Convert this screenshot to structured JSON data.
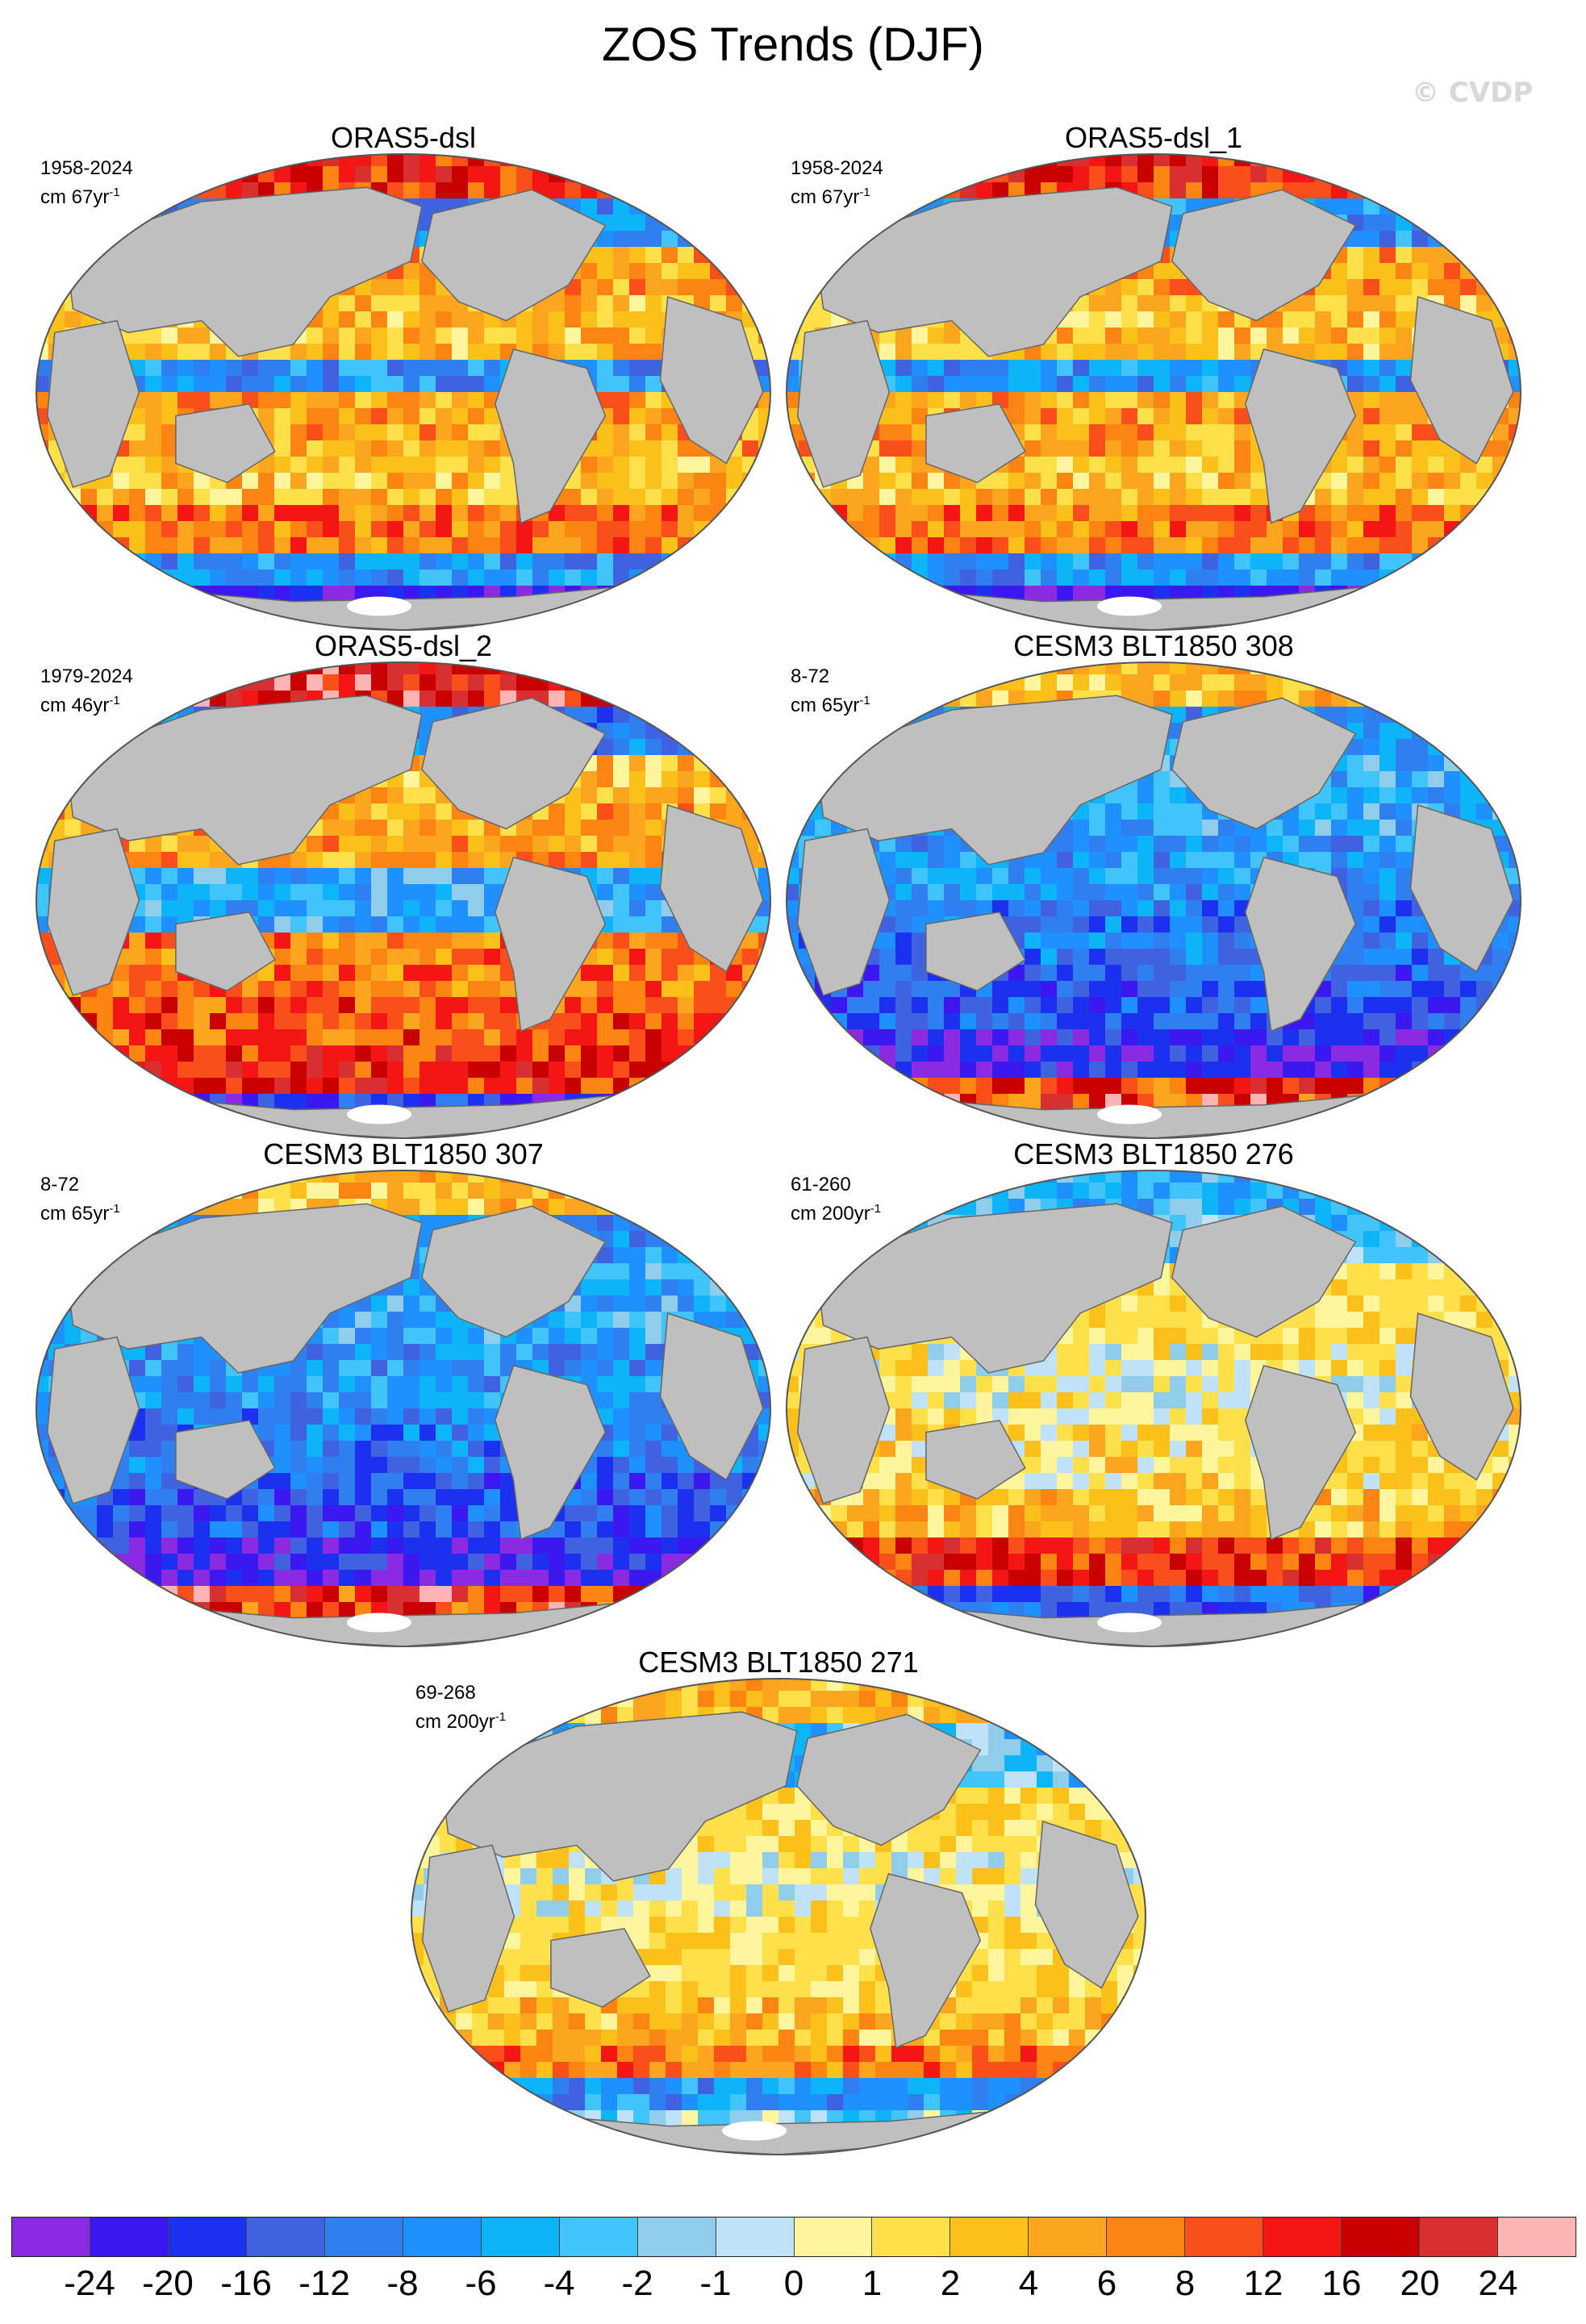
{
  "figure": {
    "title": "ZOS Trends (DJF)",
    "watermark": "© CVDP"
  },
  "panels": [
    {
      "title": "ORAS5-dsl",
      "period": "1958-2024",
      "units": "cm 67yr",
      "unit_exponent": "-1",
      "pattern": "obs"
    },
    {
      "title": "ORAS5-dsl_1",
      "period": "1958-2024",
      "units": "cm 67yr",
      "unit_exponent": "-1",
      "pattern": "obs"
    },
    {
      "title": "ORAS5-dsl_2",
      "period": "1979-2024",
      "units": "cm 46yr",
      "unit_exponent": "-1",
      "pattern": "obs2"
    },
    {
      "title": "CESM3 BLT1850 308",
      "period": "8-72",
      "units": "cm 65yr",
      "unit_exponent": "-1",
      "pattern": "cold"
    },
    {
      "title": "CESM3 BLT1850 307",
      "period": "8-72",
      "units": "cm 65yr",
      "unit_exponent": "-1",
      "pattern": "cold"
    },
    {
      "title": "CESM3 BLT1850 276",
      "period": "61-260",
      "units": "cm 200yr",
      "unit_exponent": "-1",
      "pattern": "warm"
    },
    {
      "title": "CESM3 BLT1850 271",
      "period": "69-268",
      "units": "cm 200yr",
      "unit_exponent": "-1",
      "pattern": "warm2"
    }
  ],
  "colorbar": {
    "colors": [
      "#8a2be2",
      "#3b18f0",
      "#1c30f0",
      "#3f62e0",
      "#2f7ff0",
      "#1e90ff",
      "#0eb4f8",
      "#40c4fa",
      "#90cdea",
      "#bfe2f6",
      "#fff59d",
      "#fde04a",
      "#fbc11a",
      "#fca51e",
      "#fb8413",
      "#fb4f1b",
      "#f41515",
      "#c80000",
      "#d83030",
      "#ffb4b4"
    ],
    "labels": [
      "-24",
      "-20",
      "-16",
      "-12",
      "-8",
      "-6",
      "-4",
      "-2",
      "-1",
      "0",
      "1",
      "2",
      "4",
      "6",
      "8",
      "12",
      "16",
      "20",
      "24"
    ]
  },
  "map_colors": {
    "land": "#bfbfbf",
    "ice": "#ffffff",
    "border": "#555555"
  }
}
